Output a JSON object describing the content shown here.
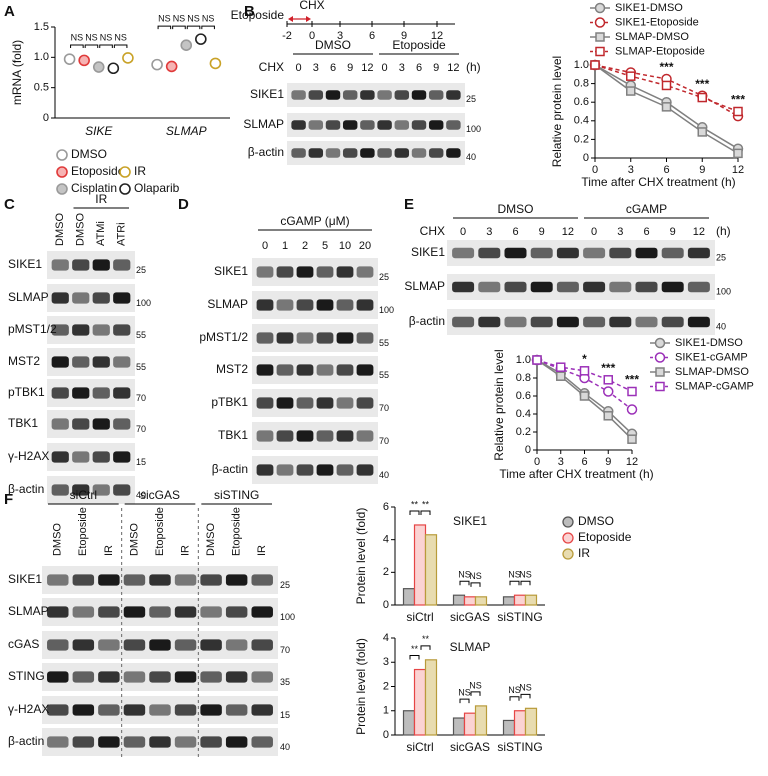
{
  "panel_labels": [
    "A",
    "B",
    "C",
    "D",
    "E",
    "F"
  ],
  "chart_data": [
    {
      "type": "dot",
      "y_label": "mRNA (fold)",
      "categories": [
        "SIKE",
        "SLMAP"
      ],
      "series": [
        {
          "name": "DMSO",
          "color": "#9a9a9a",
          "fill": "#ffffff",
          "values": [
            0.97,
            0.88
          ]
        },
        {
          "name": "Etoposide",
          "color": "#e03a3a",
          "fill": "#f6b3b3",
          "values": [
            0.95,
            0.85
          ]
        },
        {
          "name": "Cisplatin",
          "color": "#9a9a9a",
          "fill": "#c4c4c4",
          "values": [
            0.84,
            1.2
          ]
        },
        {
          "name": "Olaparib",
          "color": "#222222",
          "fill": "#ffffff",
          "values": [
            0.82,
            1.3
          ]
        },
        {
          "name": "IR",
          "color": "#c9a227",
          "fill": "#ffffff",
          "values": [
            0.99,
            0.9
          ]
        }
      ],
      "ylim": [
        0,
        1.5
      ],
      "yticks": [
        0,
        0.5,
        {
          "value": 1,
          "label": "1.0"
        },
        1.5
      ],
      "annotations": [
        [
          "NS",
          "NS",
          "NS",
          "NS"
        ],
        [
          "NS",
          "NS",
          "NS",
          "NS"
        ]
      ]
    },
    {
      "type": "line",
      "y_label": "Relative protein level",
      "x_label": "Time after CHX treatment (h)",
      "x": [
        0,
        3,
        6,
        9,
        12
      ],
      "xlim": [
        0,
        12
      ],
      "xticks": [
        0,
        3,
        6,
        9,
        12
      ],
      "ylim": [
        0,
        1
      ],
      "yticks": [
        0,
        0.2,
        0.4,
        0.6,
        0.8,
        {
          "value": 1,
          "label": "1.0"
        }
      ],
      "series": [
        {
          "name": "SIKE1-DMSO",
          "color": "#808080",
          "fill": "#d9d9d9",
          "marker": "circle",
          "dashed": false,
          "values": [
            1,
            0.78,
            0.6,
            0.33,
            0.1
          ]
        },
        {
          "name": "SIKE1-Etoposide",
          "color": "#c0282d",
          "fill": "#ffffff",
          "marker": "circle",
          "dashed": true,
          "values": [
            1,
            0.92,
            0.85,
            0.67,
            0.45
          ]
        },
        {
          "name": "SLMAP-DMSO",
          "color": "#808080",
          "fill": "#d9d9d9",
          "marker": "square",
          "dashed": false,
          "values": [
            1,
            0.72,
            0.55,
            0.28,
            0.05
          ]
        },
        {
          "name": "SLMAP-Etoposide",
          "color": "#c0282d",
          "fill": "#ffffff",
          "marker": "square",
          "dashed": true,
          "values": [
            1,
            0.88,
            0.78,
            0.65,
            0.5
          ]
        }
      ],
      "annotations": [
        null,
        null,
        "***",
        "***",
        "***"
      ]
    },
    {
      "type": "line",
      "y_label": "Relative protein level",
      "x_label": "Time after CHX treatment (h)",
      "x": [
        0,
        3,
        6,
        9,
        12
      ],
      "xlim": [
        0,
        12
      ],
      "xticks": [
        0,
        3,
        6,
        9,
        12
      ],
      "ylim": [
        0,
        1
      ],
      "yticks": [
        0,
        0.2,
        0.4,
        0.6,
        0.8,
        {
          "value": 1,
          "label": "1.0"
        }
      ],
      "series": [
        {
          "name": "SIKE1-DMSO",
          "color": "#808080",
          "fill": "#d9d9d9",
          "marker": "circle",
          "dashed": false,
          "values": [
            1,
            0.85,
            0.63,
            0.43,
            0.18
          ]
        },
        {
          "name": "SIKE1-cGAMP",
          "color": "#9b30b8",
          "fill": "#ffffff",
          "marker": "circle",
          "dashed": true,
          "values": [
            1,
            0.9,
            0.8,
            0.65,
            0.45
          ]
        },
        {
          "name": "SLMAP-DMSO",
          "color": "#808080",
          "fill": "#d9d9d9",
          "marker": "square",
          "dashed": false,
          "values": [
            1,
            0.82,
            0.6,
            0.38,
            0.12
          ]
        },
        {
          "name": "SLMAP-cGAMP",
          "color": "#9b30b8",
          "fill": "#ffffff",
          "marker": "square",
          "dashed": true,
          "values": [
            1,
            0.92,
            0.88,
            0.78,
            0.65
          ]
        }
      ],
      "annotations": [
        null,
        null,
        "*",
        "***",
        "***"
      ]
    },
    {
      "type": "bar",
      "title": "SIKE1",
      "y_label": "Protein level (fold)",
      "categories": [
        "siCtrl",
        "sicGAS",
        "siSTING"
      ],
      "series": [
        {
          "name": "DMSO",
          "color": "#555555",
          "fill": "#bdbdbd",
          "values": [
            1,
            0.6,
            0.5
          ]
        },
        {
          "name": "Etoposide",
          "color": "#e64545",
          "fill": "#fbd3d3",
          "values": [
            4.9,
            0.5,
            0.6
          ]
        },
        {
          "name": "IR",
          "color": "#b89b3a",
          "fill": "#e8dcb0",
          "values": [
            4.3,
            0.5,
            0.6
          ]
        }
      ],
      "ylim": [
        0,
        6
      ],
      "yticks": [
        0,
        2,
        4,
        6
      ],
      "annotations": [
        [
          "**",
          "**"
        ],
        [
          "NS",
          "NS"
        ],
        [
          "NS",
          "NS"
        ]
      ]
    },
    {
      "type": "bar",
      "title": "SLMAP",
      "y_label": "Protein level (fold)",
      "categories": [
        "siCtrl",
        "sicGAS",
        "siSTING"
      ],
      "series": [
        {
          "name": "DMSO",
          "color": "#555555",
          "fill": "#bdbdbd",
          "values": [
            1,
            0.7,
            0.6
          ]
        },
        {
          "name": "Etoposide",
          "color": "#e64545",
          "fill": "#fbd3d3",
          "values": [
            2.7,
            0.9,
            1.0
          ]
        },
        {
          "name": "IR",
          "color": "#b89b3a",
          "fill": "#e8dcb0",
          "values": [
            3.1,
            1.2,
            1.1
          ]
        }
      ],
      "ylim": [
        0,
        4
      ],
      "yticks": [
        0,
        1,
        2,
        3,
        4
      ],
      "annotations": [
        [
          "**",
          "**"
        ],
        [
          "NS",
          "NS"
        ],
        [
          "NS",
          "NS"
        ]
      ]
    }
  ],
  "blots": {
    "B": {
      "timeline": {
        "treatment": "Etoposide",
        "chx": "CHX",
        "ticks": [
          "-2",
          "0",
          "3",
          "6",
          "9",
          "12"
        ]
      },
      "groups": [
        "DMSO",
        "Etoposide"
      ],
      "lane_title": "CHX",
      "lanes": [
        "0",
        "3",
        "6",
        "9",
        "12",
        "0",
        "3",
        "6",
        "9",
        "12"
      ],
      "unit": "(h)",
      "rows": [
        "SIKE1",
        "SLMAP",
        "β-actin"
      ],
      "markers": [
        "25",
        "100",
        "40"
      ]
    },
    "C": {
      "header": "IR",
      "lanes": [
        "DMSO",
        "DMSO",
        "ATMi",
        "ATRi"
      ],
      "rows": [
        "SIKE1",
        "SLMAP",
        "pMST1/2",
        "MST2",
        "pTBK1",
        "TBK1",
        "γ-H2AX",
        "β-actin"
      ],
      "markers": [
        "25",
        "100",
        "55",
        "55",
        "70",
        "70",
        "15",
        "40"
      ]
    },
    "D": {
      "header": "cGAMP (μM)",
      "lanes": [
        "0",
        "1",
        "2",
        "5",
        "10",
        "20"
      ],
      "rows": [
        "SIKE1",
        "SLMAP",
        "pMST1/2",
        "MST2",
        "pTBK1",
        "TBK1",
        "β-actin"
      ],
      "markers": [
        "25",
        "100",
        "55",
        "55",
        "70",
        "70",
        "40"
      ]
    },
    "E": {
      "groups": [
        "DMSO",
        "cGAMP"
      ],
      "lane_title": "CHX",
      "lanes": [
        "0",
        "3",
        "6",
        "9",
        "12",
        "0",
        "3",
        "6",
        "9",
        "12"
      ],
      "unit": "(h)",
      "rows": [
        "SIKE1",
        "SLMAP",
        "β-actin"
      ],
      "markers": [
        "25",
        "100",
        "40"
      ]
    },
    "F": {
      "groups": [
        "siCtrl",
        "sicGAS",
        "siSTING"
      ],
      "lanes": [
        "DMSO",
        "Etoposide",
        "IR",
        "DMSO",
        "Etoposide",
        "IR",
        "DMSO",
        "Etoposide",
        "IR"
      ],
      "rows": [
        "SIKE1",
        "SLMAP",
        "cGAS",
        "STING",
        "γ-H2AX",
        "β-actin"
      ],
      "markers": [
        "25",
        "100",
        "70",
        "35",
        "15",
        "40"
      ]
    }
  }
}
